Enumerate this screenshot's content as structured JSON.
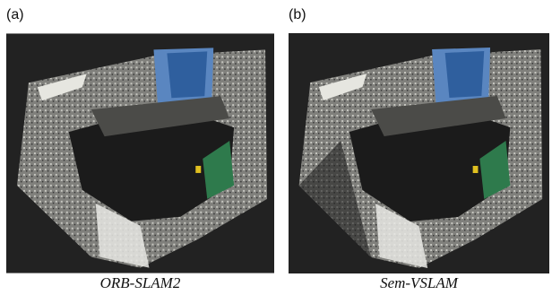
{
  "panels": [
    {
      "label": "(a)",
      "caption": "ORB-SLAM2"
    },
    {
      "label": "(b)",
      "caption": "Sem-VSLAM"
    }
  ]
}
